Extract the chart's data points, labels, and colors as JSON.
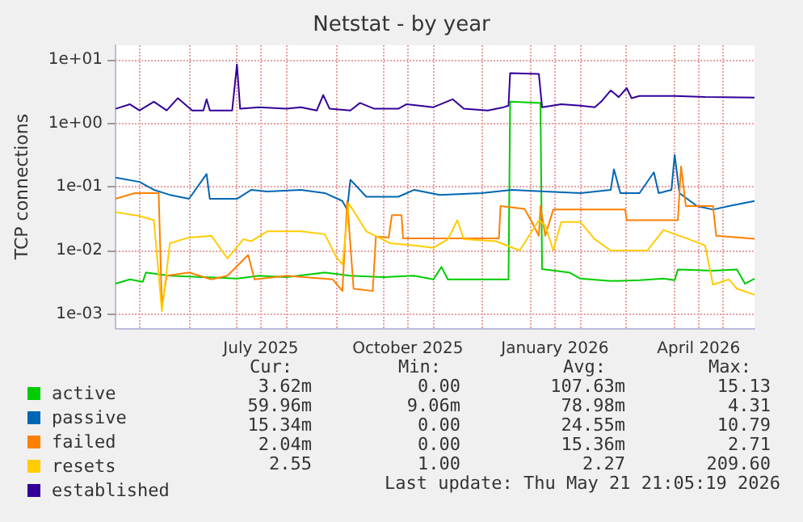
{
  "chart_data": {
    "type": "line",
    "title": "Netstat - by year",
    "ylabel": "TCP connections",
    "log": "y",
    "grid": true,
    "legend": "bottom left",
    "marker": "none",
    "line_style": "solid",
    "xlim": [
      "2025-04-16",
      "2026-05-21"
    ],
    "xticks": [
      {
        "value": "2025-05-01",
        "label": null
      },
      {
        "value": "2025-06-01",
        "label": null
      },
      {
        "value": "2025-07-01",
        "label": null
      },
      {
        "value": "2025-07-16",
        "label": "July 2025"
      },
      {
        "value": "2025-08-01",
        "label": null
      },
      {
        "value": "2025-09-01",
        "label": null
      },
      {
        "value": "2025-10-01",
        "label": null
      },
      {
        "value": "2025-10-16",
        "label": "October 2025"
      },
      {
        "value": "2025-11-01",
        "label": null
      },
      {
        "value": "2025-12-01",
        "label": null
      },
      {
        "value": "2026-01-01",
        "label": null
      },
      {
        "value": "2026-01-16",
        "label": "January 2026"
      },
      {
        "value": "2026-02-01",
        "label": null
      },
      {
        "value": "2026-03-01",
        "label": null
      },
      {
        "value": "2026-04-01",
        "label": null
      },
      {
        "value": "2026-04-16",
        "label": "April 2026"
      },
      {
        "value": "2026-05-01",
        "label": null
      }
    ],
    "ylim": [
      0.0006,
      17
    ],
    "yticks": [
      {
        "value": 0.001,
        "label": "1e-03"
      },
      {
        "value": 0.01,
        "label": "1e-02"
      },
      {
        "value": 0.1,
        "label": "1e-01"
      },
      {
        "value": 1,
        "label": "1e+00"
      },
      {
        "value": 10,
        "label": "1e+01"
      }
    ],
    "series": [
      {
        "name": "active",
        "color": "#00cc00",
        "x": [
          "2025-04-16",
          "2025-04-25",
          "2025-05-03",
          "2025-05-05",
          "2025-05-20",
          "2025-06-10",
          "2025-07-01",
          "2025-07-15",
          "2025-08-01",
          "2025-08-25",
          "2025-09-10",
          "2025-10-01",
          "2025-10-20",
          "2025-11-01",
          "2025-11-06",
          "2025-11-10",
          "2025-12-01",
          "2025-12-18",
          "2025-12-19",
          "2026-01-07",
          "2026-01-08",
          "2026-01-25",
          "2026-02-01",
          "2026-02-20",
          "2026-03-10",
          "2026-03-25",
          "2026-04-01",
          "2026-04-03",
          "2026-04-25",
          "2026-05-10",
          "2026-05-15",
          "2026-05-21"
        ],
        "values": [
          0.003,
          0.0035,
          0.0032,
          0.0045,
          0.004,
          0.0038,
          0.0036,
          0.004,
          0.0038,
          0.0045,
          0.004,
          0.0038,
          0.004,
          0.0035,
          0.0055,
          0.0035,
          0.0035,
          0.0035,
          2.2,
          2.1,
          0.0051,
          0.0045,
          0.0036,
          0.0033,
          0.0034,
          0.0036,
          0.0034,
          0.005,
          0.0048,
          0.005,
          0.003,
          0.0036
        ]
      },
      {
        "name": "passive",
        "color": "#0066b3",
        "x": [
          "2025-04-16",
          "2025-05-01",
          "2025-05-10",
          "2025-05-20",
          "2025-06-01",
          "2025-06-12",
          "2025-06-14",
          "2025-07-01",
          "2025-07-10",
          "2025-07-20",
          "2025-08-10",
          "2025-08-25",
          "2025-09-05",
          "2025-09-08",
          "2025-09-10",
          "2025-09-20",
          "2025-10-10",
          "2025-10-20",
          "2025-11-05",
          "2025-12-01",
          "2025-12-20",
          "2026-01-10",
          "2026-02-01",
          "2026-02-20",
          "2026-02-22",
          "2026-02-26",
          "2026-03-10",
          "2026-03-19",
          "2026-03-22",
          "2026-03-30",
          "2026-04-01",
          "2026-04-04",
          "2026-04-15",
          "2026-04-25",
          "2026-05-05",
          "2026-05-21"
        ],
        "values": [
          0.14,
          0.12,
          0.09,
          0.075,
          0.065,
          0.16,
          0.065,
          0.065,
          0.09,
          0.085,
          0.09,
          0.08,
          0.06,
          0.044,
          0.13,
          0.07,
          0.07,
          0.09,
          0.075,
          0.08,
          0.09,
          0.085,
          0.08,
          0.09,
          0.19,
          0.08,
          0.08,
          0.17,
          0.08,
          0.09,
          0.32,
          0.08,
          0.05,
          0.044,
          0.05,
          0.06
        ]
      },
      {
        "name": "failed",
        "color": "#ff8000",
        "x": [
          "2025-04-16",
          "2025-04-28",
          "2025-05-13",
          "2025-05-15",
          "2025-05-18",
          "2025-06-01",
          "2025-06-15",
          "2025-06-25",
          "2025-07-08",
          "2025-07-12",
          "2025-08-01",
          "2025-08-30",
          "2025-09-05",
          "2025-09-08",
          "2025-09-12",
          "2025-09-24",
          "2025-09-26",
          "2025-10-04",
          "2025-10-06",
          "2025-10-12",
          "2025-10-13",
          "2025-12-12",
          "2025-12-13",
          "2025-12-28",
          "2026-01-01",
          "2026-01-06",
          "2026-01-07",
          "2026-01-10",
          "2026-01-15",
          "2026-03-01",
          "2026-03-02",
          "2026-04-03",
          "2026-04-05",
          "2026-04-08",
          "2026-04-25",
          "2026-04-27",
          "2026-05-21"
        ],
        "values": [
          0.065,
          0.08,
          0.08,
          0.0013,
          0.004,
          0.0045,
          0.0035,
          0.004,
          0.0085,
          0.0035,
          0.004,
          0.0035,
          0.0023,
          0.06,
          0.0025,
          0.0023,
          0.0166,
          0.016,
          0.036,
          0.036,
          0.0155,
          0.0155,
          0.05,
          0.045,
          0.03,
          0.017,
          0.05,
          0.017,
          0.044,
          0.044,
          0.03,
          0.03,
          0.21,
          0.05,
          0.05,
          0.017,
          0.0153
        ]
      },
      {
        "name": "resets",
        "color": "#ffcc00",
        "x": [
          "2025-04-16",
          "2025-05-01",
          "2025-05-10",
          "2025-05-15",
          "2025-05-20",
          "2025-06-01",
          "2025-06-15",
          "2025-06-25",
          "2025-07-05",
          "2025-07-10",
          "2025-07-20",
          "2025-08-10",
          "2025-08-25",
          "2025-09-01",
          "2025-09-05",
          "2025-09-09",
          "2025-09-20",
          "2025-10-05",
          "2025-10-20",
          "2025-11-01",
          "2025-11-10",
          "2025-11-16",
          "2025-11-20",
          "2025-12-10",
          "2025-12-25",
          "2026-01-06",
          "2026-01-10",
          "2026-01-15",
          "2026-01-20",
          "2026-02-01",
          "2026-02-10",
          "2026-02-20",
          "2026-03-15",
          "2026-03-25",
          "2026-04-10",
          "2026-04-20",
          "2026-04-25",
          "2026-05-05",
          "2026-05-10",
          "2026-05-21"
        ],
        "values": [
          0.04,
          0.035,
          0.03,
          0.0011,
          0.013,
          0.016,
          0.017,
          0.0075,
          0.015,
          0.014,
          0.02,
          0.02,
          0.018,
          0.008,
          0.006,
          0.055,
          0.02,
          0.013,
          0.012,
          0.011,
          0.015,
          0.03,
          0.015,
          0.014,
          0.01,
          0.03,
          0.025,
          0.01,
          0.028,
          0.028,
          0.015,
          0.01,
          0.01,
          0.021,
          0.015,
          0.012,
          0.0029,
          0.0035,
          0.0025,
          0.002
        ]
      },
      {
        "name": "established",
        "color": "#330099",
        "x": [
          "2025-04-16",
          "2025-04-25",
          "2025-05-01",
          "2025-05-10",
          "2025-05-18",
          "2025-05-25",
          "2025-06-03",
          "2025-06-10",
          "2025-06-12",
          "2025-06-14",
          "2025-06-28",
          "2025-07-01",
          "2025-07-03",
          "2025-07-15",
          "2025-08-01",
          "2025-08-10",
          "2025-08-20",
          "2025-08-24",
          "2025-08-28",
          "2025-09-10",
          "2025-09-16",
          "2025-09-25",
          "2025-10-10",
          "2025-10-15",
          "2025-11-01",
          "2025-11-13",
          "2025-11-20",
          "2025-12-05",
          "2025-12-15",
          "2025-12-18",
          "2025-12-19",
          "2026-01-06",
          "2026-01-08",
          "2026-01-20",
          "2026-02-01",
          "2026-02-10",
          "2026-02-14",
          "2026-02-20",
          "2026-02-25",
          "2026-03-02",
          "2026-03-05",
          "2026-03-10",
          "2026-04-01",
          "2026-04-20",
          "2026-05-21"
        ],
        "values": [
          1.7,
          2.0,
          1.6,
          2.2,
          1.6,
          2.5,
          1.6,
          1.6,
          2.4,
          1.6,
          1.6,
          8.5,
          1.7,
          1.8,
          1.7,
          1.8,
          1.6,
          2.8,
          1.7,
          1.6,
          2.1,
          1.7,
          1.7,
          2.0,
          1.8,
          2.4,
          1.7,
          1.6,
          1.8,
          1.9,
          6.2,
          6.0,
          1.8,
          2.0,
          1.9,
          1.8,
          2.2,
          3.3,
          2.6,
          3.6,
          2.5,
          2.7,
          2.7,
          2.6,
          2.55
        ]
      }
    ],
    "annotations": [
      "Cur:",
      "Min:",
      "Avg:",
      "Max:",
      "3.62m",
      "0.00",
      "107.63m",
      "15.13",
      "59.96m",
      "9.06m",
      "78.98m",
      "4.31",
      "15.34m",
      "0.00",
      "24.55m",
      "10.79",
      "2.04m",
      "0.00",
      "15.36m",
      "2.71",
      "2.55",
      "1.00",
      "2.27",
      "209.60",
      "Last update: Thu May 21 21:05:19 2026"
    ]
  }
}
